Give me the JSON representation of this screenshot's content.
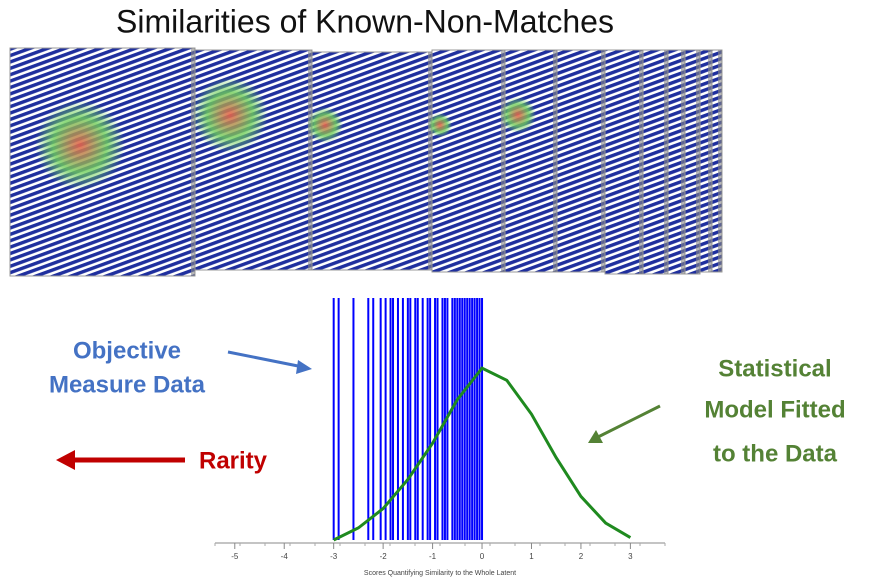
{
  "chart_data": {
    "type": "rug-density",
    "title": "Similarities of Known-Non-Matches",
    "x_label": "Scores Quantifying Similarity to the Whole Latent",
    "xlim": [
      -5.4,
      3.7
    ],
    "xticks": [
      -5,
      -4,
      -3,
      -2,
      -1,
      0,
      1,
      2,
      3
    ],
    "ylim": [
      0,
      1
    ],
    "rug": {
      "color": "#0000ff",
      "values": [
        -3.0,
        -2.9,
        -2.6,
        -2.3,
        -2.2,
        -2.05,
        -1.95,
        -1.85,
        -1.8,
        -1.7,
        -1.6,
        -1.5,
        -1.45,
        -1.35,
        -1.3,
        -1.2,
        -1.1,
        -1.05,
        -0.95,
        -0.9,
        -0.8,
        -0.75,
        -0.7,
        -0.6,
        -0.55,
        -0.5,
        -0.45,
        -0.4,
        -0.35,
        -0.3,
        -0.25,
        -0.2,
        -0.15,
        -0.1,
        -0.05,
        0.0
      ]
    },
    "curve": {
      "color": "#1f8a1f",
      "x": [
        -3,
        -2.5,
        -2,
        -1.5,
        -1,
        -0.5,
        0,
        0.5,
        1,
        1.5,
        2,
        2.5,
        3
      ],
      "values": [
        0,
        0.05,
        0.13,
        0.25,
        0.4,
        0.58,
        0.71,
        0.66,
        0.52,
        0.34,
        0.18,
        0.07,
        0.01
      ]
    },
    "annotations": [
      {
        "lines": [
          "Objective",
          "Measure Data"
        ],
        "color": "#4472c4"
      },
      {
        "lines": [
          "Rarity"
        ],
        "color": "#c00000"
      },
      {
        "lines": [
          "Statistical",
          "Model Fitted",
          "to the Data"
        ],
        "color": "#548235"
      }
    ]
  }
}
